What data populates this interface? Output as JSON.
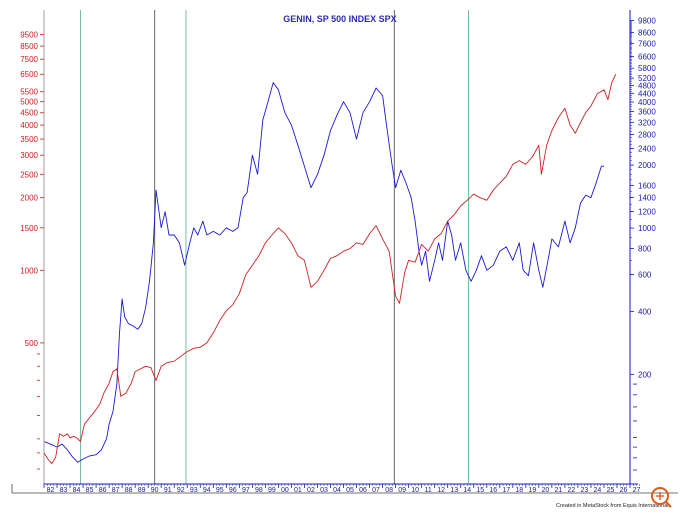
{
  "chart_data": {
    "type": "line",
    "title": "GENIN, SP 500 INDEX SPX",
    "credit": "Created in MetaStock from Equis International",
    "x_labels": [
      "82",
      "83",
      "84",
      "85",
      "86",
      "87",
      "88",
      "89",
      "90",
      "91",
      "92",
      "93",
      "94",
      "95",
      "96",
      "97",
      "98",
      "99",
      "00",
      "01",
      "02",
      "03",
      "04",
      "05",
      "06",
      "07",
      "08",
      "09",
      "10",
      "11",
      "12",
      "13",
      "14",
      "15",
      "16",
      "17",
      "18",
      "19",
      "20",
      "21",
      "22",
      "23",
      "24",
      "25",
      "26",
      "27"
    ],
    "left_axis": {
      "scale": "log",
      "range": [
        130,
        12000
      ],
      "labeled_ticks": [
        500,
        1000,
        1500,
        2000,
        2500,
        3000,
        3500,
        4000,
        4500,
        5000,
        5500,
        6500,
        7500,
        8500,
        9500
      ]
    },
    "right_axis": {
      "scale": "log",
      "range": [
        60,
        11000
      ],
      "labeled_ticks": [
        200,
        400,
        600,
        800,
        1000,
        1200,
        1400,
        1600,
        2000,
        2400,
        2800,
        3200,
        3600,
        4000,
        4400,
        4800,
        5200,
        5800,
        6600,
        7600,
        8600,
        9800
      ]
    },
    "vertical_lines": [
      {
        "x": 1984.8,
        "color": "#6ab89a"
      },
      {
        "x": 1990.5,
        "color": "#555555"
      },
      {
        "x": 1992.9,
        "color": "#6ab89a"
      },
      {
        "x": 2008.9,
        "color": "#555555"
      },
      {
        "x": 2014.6,
        "color": "#6ab89a"
      }
    ],
    "series": [
      {
        "name": "",
        "axis": "left",
        "color": "#1a1ad0",
        "points": [
          [
            1982.0,
            195
          ],
          [
            1982.5,
            190
          ],
          [
            1983.0,
            185
          ],
          [
            1983.4,
            190
          ],
          [
            1983.8,
            180
          ],
          [
            1984.2,
            168
          ],
          [
            1984.6,
            160
          ],
          [
            1985.0,
            165
          ],
          [
            1985.5,
            170
          ],
          [
            1986.0,
            172
          ],
          [
            1986.4,
            180
          ],
          [
            1986.8,
            200
          ],
          [
            1987.0,
            230
          ],
          [
            1987.3,
            260
          ],
          [
            1987.6,
            340
          ],
          [
            1987.8,
            550
          ],
          [
            1988.0,
            760
          ],
          [
            1988.2,
            640
          ],
          [
            1988.5,
            600
          ],
          [
            1988.8,
            590
          ],
          [
            1989.2,
            570
          ],
          [
            1989.5,
            600
          ],
          [
            1989.8,
            700
          ],
          [
            1990.1,
            900
          ],
          [
            1990.4,
            1300
          ],
          [
            1990.6,
            2150
          ],
          [
            1990.8,
            1800
          ],
          [
            1991.0,
            1500
          ],
          [
            1991.3,
            1750
          ],
          [
            1991.6,
            1400
          ],
          [
            1992.0,
            1400
          ],
          [
            1992.4,
            1300
          ],
          [
            1992.8,
            1050
          ],
          [
            1993.2,
            1300
          ],
          [
            1993.5,
            1500
          ],
          [
            1993.8,
            1400
          ],
          [
            1994.2,
            1600
          ],
          [
            1994.5,
            1400
          ],
          [
            1995.0,
            1450
          ],
          [
            1995.5,
            1400
          ],
          [
            1996.0,
            1500
          ],
          [
            1996.5,
            1450
          ],
          [
            1996.9,
            1500
          ],
          [
            1997.3,
            2000
          ],
          [
            1997.6,
            2100
          ],
          [
            1998.0,
            3000
          ],
          [
            1998.4,
            2500
          ],
          [
            1998.8,
            4200
          ],
          [
            1999.2,
            5000
          ],
          [
            1999.6,
            6000
          ],
          [
            2000.0,
            5600
          ],
          [
            2000.5,
            4500
          ],
          [
            2001.0,
            4000
          ],
          [
            2001.5,
            3300
          ],
          [
            2002.0,
            2700
          ],
          [
            2002.5,
            2200
          ],
          [
            2003.0,
            2500
          ],
          [
            2003.5,
            3000
          ],
          [
            2004.0,
            3800
          ],
          [
            2004.5,
            4400
          ],
          [
            2005.0,
            5000
          ],
          [
            2005.5,
            4500
          ],
          [
            2006.0,
            3500
          ],
          [
            2006.5,
            4500
          ],
          [
            2007.0,
            5000
          ],
          [
            2007.5,
            5700
          ],
          [
            2008.0,
            5300
          ],
          [
            2008.3,
            4000
          ],
          [
            2008.7,
            2800
          ],
          [
            2009.0,
            2200
          ],
          [
            2009.4,
            2600
          ],
          [
            2009.8,
            2300
          ],
          [
            2010.2,
            2000
          ],
          [
            2010.5,
            1600
          ],
          [
            2010.8,
            1200
          ],
          [
            2011.0,
            1050
          ],
          [
            2011.3,
            1200
          ],
          [
            2011.6,
            900
          ],
          [
            2012.0,
            1100
          ],
          [
            2012.3,
            1300
          ],
          [
            2012.6,
            1100
          ],
          [
            2013.0,
            1600
          ],
          [
            2013.3,
            1400
          ],
          [
            2013.6,
            1100
          ],
          [
            2014.0,
            1300
          ],
          [
            2014.4,
            1000
          ],
          [
            2014.8,
            900
          ],
          [
            2015.2,
            1000
          ],
          [
            2015.6,
            1150
          ],
          [
            2016.0,
            1000
          ],
          [
            2016.5,
            1050
          ],
          [
            2017.0,
            1200
          ],
          [
            2017.5,
            1250
          ],
          [
            2018.0,
            1100
          ],
          [
            2018.5,
            1300
          ],
          [
            2018.8,
            1000
          ],
          [
            2019.2,
            950
          ],
          [
            2019.6,
            1300
          ],
          [
            2020.0,
            1000
          ],
          [
            2020.3,
            850
          ],
          [
            2020.7,
            1100
          ],
          [
            2021.0,
            1350
          ],
          [
            2021.5,
            1250
          ],
          [
            2022.0,
            1600
          ],
          [
            2022.4,
            1300
          ],
          [
            2022.8,
            1500
          ],
          [
            2023.2,
            1900
          ],
          [
            2023.6,
            2050
          ],
          [
            2024.0,
            2000
          ],
          [
            2024.4,
            2300
          ],
          [
            2024.8,
            2700
          ],
          [
            2025.0,
            2700
          ]
        ]
      },
      {
        "name": "",
        "axis": "left",
        "color": "#cc2222",
        "points": [
          [
            1982.0,
            175
          ],
          [
            1982.3,
            165
          ],
          [
            1982.6,
            158
          ],
          [
            1982.9,
            168
          ],
          [
            1983.2,
            210
          ],
          [
            1983.5,
            205
          ],
          [
            1983.8,
            210
          ],
          [
            1984.0,
            202
          ],
          [
            1984.3,
            205
          ],
          [
            1984.6,
            200
          ],
          [
            1984.8,
            195
          ],
          [
            1985.1,
            230
          ],
          [
            1985.5,
            245
          ],
          [
            1985.9,
            260
          ],
          [
            1986.3,
            280
          ],
          [
            1986.6,
            310
          ],
          [
            1987.0,
            340
          ],
          [
            1987.3,
            380
          ],
          [
            1987.6,
            390
          ],
          [
            1987.9,
            300
          ],
          [
            1988.3,
            310
          ],
          [
            1988.7,
            340
          ],
          [
            1989.0,
            380
          ],
          [
            1989.4,
            390
          ],
          [
            1989.8,
            400
          ],
          [
            1990.2,
            395
          ],
          [
            1990.6,
            350
          ],
          [
            1991.0,
            400
          ],
          [
            1991.5,
            415
          ],
          [
            1992.0,
            420
          ],
          [
            1992.5,
            440
          ],
          [
            1993.0,
            460
          ],
          [
            1993.5,
            475
          ],
          [
            1994.0,
            480
          ],
          [
            1994.5,
            500
          ],
          [
            1995.0,
            550
          ],
          [
            1995.5,
            620
          ],
          [
            1996.0,
            680
          ],
          [
            1996.5,
            720
          ],
          [
            1997.0,
            800
          ],
          [
            1997.5,
            960
          ],
          [
            1998.0,
            1050
          ],
          [
            1998.5,
            1150
          ],
          [
            1999.0,
            1300
          ],
          [
            1999.5,
            1400
          ],
          [
            2000.0,
            1500
          ],
          [
            2000.5,
            1420
          ],
          [
            2001.0,
            1300
          ],
          [
            2001.5,
            1150
          ],
          [
            2002.0,
            1100
          ],
          [
            2002.5,
            850
          ],
          [
            2003.0,
            900
          ],
          [
            2003.5,
            1000
          ],
          [
            2004.0,
            1120
          ],
          [
            2004.5,
            1150
          ],
          [
            2005.0,
            1200
          ],
          [
            2005.5,
            1230
          ],
          [
            2006.0,
            1300
          ],
          [
            2006.5,
            1280
          ],
          [
            2007.0,
            1420
          ],
          [
            2007.5,
            1530
          ],
          [
            2008.0,
            1350
          ],
          [
            2008.5,
            1200
          ],
          [
            2009.0,
            780
          ],
          [
            2009.3,
            730
          ],
          [
            2009.7,
            980
          ],
          [
            2010.0,
            1100
          ],
          [
            2010.5,
            1080
          ],
          [
            2011.0,
            1280
          ],
          [
            2011.5,
            1200
          ],
          [
            2012.0,
            1350
          ],
          [
            2012.5,
            1420
          ],
          [
            2013.0,
            1600
          ],
          [
            2013.5,
            1700
          ],
          [
            2014.0,
            1850
          ],
          [
            2014.5,
            1950
          ],
          [
            2015.0,
            2070
          ],
          [
            2015.5,
            2000
          ],
          [
            2016.0,
            1950
          ],
          [
            2016.5,
            2150
          ],
          [
            2017.0,
            2300
          ],
          [
            2017.5,
            2450
          ],
          [
            2018.0,
            2750
          ],
          [
            2018.5,
            2850
          ],
          [
            2019.0,
            2750
          ],
          [
            2019.5,
            2950
          ],
          [
            2020.0,
            3300
          ],
          [
            2020.2,
            2500
          ],
          [
            2020.6,
            3300
          ],
          [
            2021.0,
            3800
          ],
          [
            2021.5,
            4300
          ],
          [
            2022.0,
            4700
          ],
          [
            2022.4,
            4000
          ],
          [
            2022.8,
            3700
          ],
          [
            2023.2,
            4100
          ],
          [
            2023.6,
            4500
          ],
          [
            2024.0,
            4800
          ],
          [
            2024.5,
            5400
          ],
          [
            2025.0,
            5600
          ],
          [
            2025.3,
            5100
          ],
          [
            2025.6,
            6000
          ],
          [
            2025.9,
            6500
          ]
        ]
      }
    ]
  }
}
